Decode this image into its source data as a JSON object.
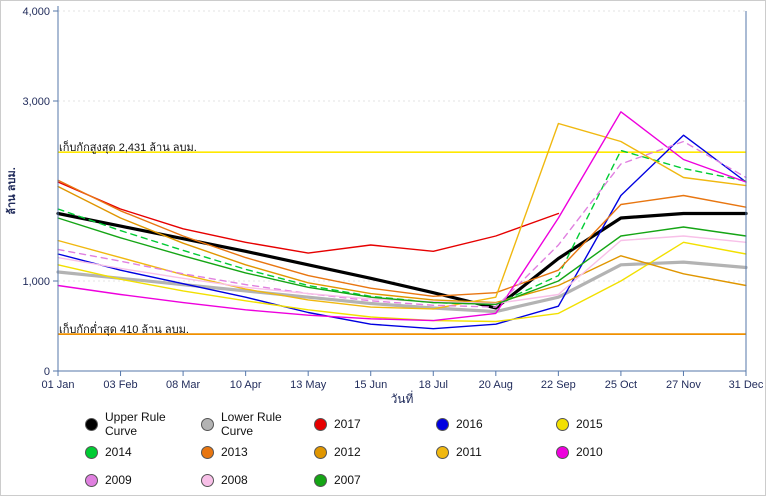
{
  "chart_data": {
    "type": "line",
    "xlabel": "วันที่",
    "ylabel": "ล้าน ลบม.",
    "ylim": [
      0,
      4000
    ],
    "grid": true,
    "legend_position": "bottom",
    "axis_color": "#5577aa",
    "tick_color": "#1f2a5a",
    "yticks": [
      {
        "value": 4000,
        "label": "4,000"
      },
      {
        "value": 3000,
        "label": "3,000"
      },
      {
        "value": 1000,
        "label": "1,000"
      },
      {
        "value": 0,
        "label": "0"
      }
    ],
    "categories": [
      "01 Jan",
      "03 Feb",
      "08 Mar",
      "10 Apr",
      "13 May",
      "15 Jun",
      "18 Jul",
      "20 Aug",
      "22 Sep",
      "25 Oct",
      "27 Nov",
      "31 Dec"
    ],
    "reference_lines": [
      {
        "label": "เก็บกักสูงสุด 2,431 ล้าน ลบม.",
        "value": 2431,
        "color": "#ffe800"
      },
      {
        "label": "เก็บกักต่ำสุด 410 ล้าน ลบม.",
        "value": 410,
        "color": "#f09000"
      }
    ],
    "series": [
      {
        "id": "upper-rule-curve",
        "name": "Upper Rule Curve",
        "color": "#000000",
        "width": 3.2,
        "values": [
          1750,
          1610,
          1470,
          1330,
          1180,
          1030,
          870,
          700,
          1250,
          1700,
          1750,
          1750
        ]
      },
      {
        "id": "lower-rule-curve",
        "name": "Lower Rule Curve",
        "color": "#b3b3b3",
        "width": 3.2,
        "values": [
          1100,
          1030,
          960,
          890,
          820,
          750,
          700,
          660,
          820,
          1180,
          1210,
          1150
        ]
      },
      {
        "id": "2017",
        "name": "2017",
        "color": "#e60000",
        "width": 1.4,
        "values": [
          2100,
          1800,
          1580,
          1430,
          1310,
          1400,
          1330,
          1500,
          1750,
          null,
          null,
          null
        ]
      },
      {
        "id": "2016",
        "name": "2016",
        "color": "#0000e0",
        "width": 1.4,
        "values": [
          1300,
          1120,
          970,
          820,
          650,
          520,
          470,
          520,
          720,
          1950,
          2620,
          2100
        ]
      },
      {
        "id": "2015",
        "name": "2015",
        "color": "#f2e000",
        "width": 1.4,
        "values": [
          1180,
          1020,
          890,
          780,
          680,
          600,
          560,
          550,
          640,
          1000,
          1430,
          1300
        ]
      },
      {
        "id": "2014",
        "name": "2014",
        "color": "#00cc33",
        "width": 1.4,
        "dash": "6 5",
        "values": [
          1800,
          1560,
          1340,
          1130,
          950,
          830,
          760,
          740,
          1060,
          2450,
          2250,
          2110
        ]
      },
      {
        "id": "2013",
        "name": "2013",
        "color": "#e87611",
        "width": 1.4,
        "values": [
          2120,
          1780,
          1500,
          1260,
          1060,
          920,
          830,
          870,
          1120,
          1850,
          1950,
          1820
        ]
      },
      {
        "id": "2012",
        "name": "2012",
        "color": "#e09600",
        "width": 1.4,
        "values": [
          2050,
          1700,
          1420,
          1180,
          980,
          860,
          790,
          760,
          950,
          1280,
          1080,
          950
        ]
      },
      {
        "id": "2011",
        "name": "2011",
        "color": "#f0b810",
        "width": 1.4,
        "values": [
          1450,
          1260,
          1070,
          910,
          790,
          710,
          690,
          820,
          2750,
          2550,
          2150,
          2060
        ]
      },
      {
        "id": "2010",
        "name": "2010",
        "color": "#ee00dd",
        "width": 1.4,
        "values": [
          950,
          850,
          760,
          680,
          620,
          580,
          560,
          640,
          1700,
          2880,
          2350,
          2100
        ]
      },
      {
        "id": "2009",
        "name": "2009",
        "color": "#e080e0",
        "width": 1.4,
        "dash": "6 5",
        "values": [
          1350,
          1220,
          1080,
          960,
          860,
          780,
          730,
          710,
          1400,
          2300,
          2550,
          2150
        ]
      },
      {
        "id": "2008",
        "name": "2008",
        "color": "#f8c0e8",
        "width": 1.4,
        "values": [
          1260,
          1140,
          1030,
          930,
          860,
          800,
          770,
          750,
          850,
          1450,
          1500,
          1430
        ]
      },
      {
        "id": "2007",
        "name": "2007",
        "color": "#15a515",
        "width": 1.4,
        "values": [
          1700,
          1480,
          1280,
          1090,
          930,
          820,
          760,
          740,
          1000,
          1500,
          1600,
          1500
        ]
      }
    ]
  }
}
